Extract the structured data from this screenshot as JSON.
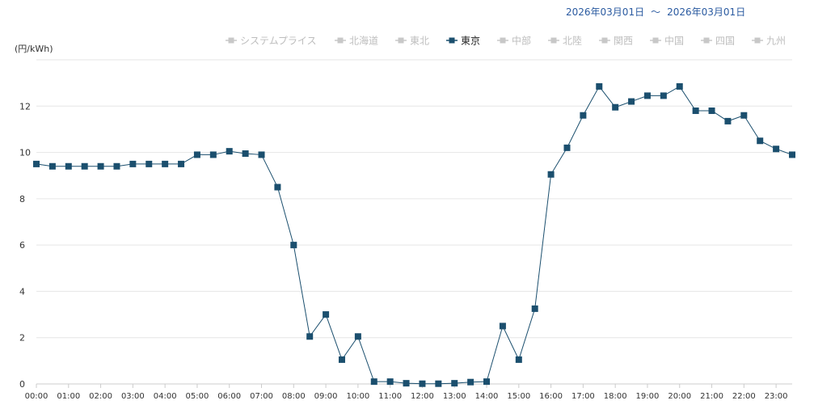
{
  "date_range": {
    "start": "2026年03月01日",
    "separator": "～",
    "end": "2026年03月01日"
  },
  "colors": {
    "active": "#1b4f6e",
    "inactive": "#c8c8c8",
    "grid": "#e6e6e6",
    "axis": "#cccccc",
    "date": "#2a5aa0"
  },
  "chart_data": {
    "type": "line",
    "ylabel": "(円/kWh)",
    "ylim": [
      0,
      14
    ],
    "yticks": [
      0,
      2,
      4,
      6,
      8,
      10,
      12
    ],
    "xticks": [
      "00:00",
      "01:00",
      "02:00",
      "03:00",
      "04:00",
      "05:00",
      "06:00",
      "07:00",
      "08:00",
      "09:00",
      "10:00",
      "11:00",
      "12:00",
      "13:00",
      "14:00",
      "15:00",
      "16:00",
      "17:00",
      "18:00",
      "19:00",
      "20:00",
      "21:00",
      "22:00",
      "23:00"
    ],
    "legend": [
      {
        "name": "システムプライス",
        "active": false
      },
      {
        "name": "北海道",
        "active": false
      },
      {
        "name": "東北",
        "active": false
      },
      {
        "name": "東京",
        "active": true
      },
      {
        "name": "中部",
        "active": false
      },
      {
        "name": "北陸",
        "active": false
      },
      {
        "name": "関西",
        "active": false
      },
      {
        "name": "中国",
        "active": false
      },
      {
        "name": "四国",
        "active": false
      },
      {
        "name": "九州",
        "active": false
      }
    ],
    "legend_position": "top-right",
    "grid": true,
    "series": [
      {
        "name": "東京",
        "x": [
          "00:00",
          "00:30",
          "01:00",
          "01:30",
          "02:00",
          "02:30",
          "03:00",
          "03:30",
          "04:00",
          "04:30",
          "05:00",
          "05:30",
          "06:00",
          "06:30",
          "07:00",
          "07:30",
          "08:00",
          "08:30",
          "09:00",
          "09:30",
          "10:00",
          "10:30",
          "11:00",
          "11:30",
          "12:00",
          "12:30",
          "13:00",
          "13:30",
          "14:00",
          "14:30",
          "15:00",
          "15:30",
          "16:00",
          "16:30",
          "17:00",
          "17:30",
          "18:00",
          "18:30",
          "19:00",
          "19:30",
          "20:00",
          "20:30",
          "21:00",
          "21:30",
          "22:00",
          "22:30",
          "23:00",
          "23:30"
        ],
        "values": [
          9.5,
          9.4,
          9.4,
          9.4,
          9.4,
          9.4,
          9.5,
          9.5,
          9.5,
          9.5,
          9.9,
          9.9,
          10.05,
          9.95,
          9.9,
          8.5,
          6.0,
          2.05,
          3.0,
          1.05,
          2.05,
          0.1,
          0.1,
          0.03,
          0.01,
          0.01,
          0.03,
          0.08,
          0.1,
          2.5,
          1.05,
          3.25,
          9.05,
          10.2,
          11.6,
          12.85,
          11.95,
          12.2,
          12.45,
          12.45,
          12.85,
          11.8,
          11.8,
          11.35,
          11.6,
          10.5,
          10.15,
          9.9
        ]
      }
    ]
  }
}
